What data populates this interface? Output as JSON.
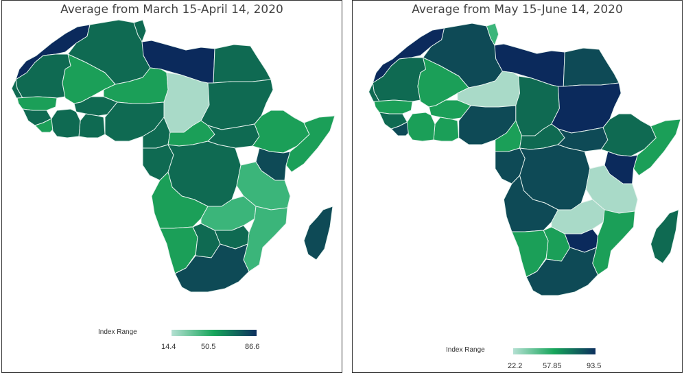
{
  "panels": [
    {
      "title": "Average from March 15-April 14, 2020",
      "legend": {
        "title": "Index Range",
        "min": "14.4",
        "mid": "50.5",
        "max": "86.6",
        "colors": [
          "#b4e0d2",
          "#16a55a",
          "#0d2f5e"
        ]
      }
    },
    {
      "title": "Average from May 15-June 14, 2020",
      "legend": {
        "title": "Index Range",
        "min": "22.2",
        "mid": "57.85",
        "max": "93.5",
        "colors": [
          "#b4e0d2",
          "#16a55a",
          "#0d2f5e"
        ]
      }
    }
  ],
  "palette": {
    "light": "#a9dac8",
    "lightgreen": "#3bb57a",
    "green": "#1b9f58",
    "teal": "#0f6a52",
    "deepteal": "#0e4a56",
    "navy": "#0b2a5c"
  },
  "regions": [
    {
      "id": "morocco",
      "c": [
        "navy",
        "navy"
      ]
    },
    {
      "id": "algeria",
      "c": [
        "teal",
        "deepteal"
      ]
    },
    {
      "id": "tunisia",
      "c": [
        "teal",
        "lightgreen"
      ]
    },
    {
      "id": "libya",
      "c": [
        "navy",
        "navy"
      ]
    },
    {
      "id": "egypt",
      "c": [
        "teal",
        "deepteal"
      ]
    },
    {
      "id": "mauritania",
      "c": [
        "teal",
        "teal"
      ]
    },
    {
      "id": "mali",
      "c": [
        "green",
        "green"
      ]
    },
    {
      "id": "niger",
      "c": [
        "green",
        "light"
      ]
    },
    {
      "id": "chad",
      "c": [
        "light",
        "teal"
      ]
    },
    {
      "id": "sudan",
      "c": [
        "teal",
        "navy"
      ]
    },
    {
      "id": "west-coast",
      "c": [
        "teal",
        "teal"
      ]
    },
    {
      "id": "senegal",
      "c": [
        "green",
        "green"
      ]
    },
    {
      "id": "guinea",
      "c": [
        "teal",
        "teal"
      ]
    },
    {
      "id": "sierra-leone",
      "c": [
        "green",
        "deepteal"
      ]
    },
    {
      "id": "burkina",
      "c": [
        "teal",
        "green"
      ]
    },
    {
      "id": "ghana",
      "c": [
        "teal",
        "green"
      ]
    },
    {
      "id": "cote-divoire",
      "c": [
        "teal",
        "green"
      ]
    },
    {
      "id": "nigeria",
      "c": [
        "teal",
        "deepteal"
      ]
    },
    {
      "id": "cameroon",
      "c": [
        "teal",
        "green"
      ]
    },
    {
      "id": "car",
      "c": [
        "green",
        "teal"
      ]
    },
    {
      "id": "south-sudan",
      "c": [
        "teal",
        "deepteal"
      ]
    },
    {
      "id": "ethiopia",
      "c": [
        "green",
        "teal"
      ]
    },
    {
      "id": "somalia",
      "c": [
        "green",
        "green"
      ]
    },
    {
      "id": "kenya",
      "c": [
        "deepteal",
        "navy"
      ]
    },
    {
      "id": "gabon-congo",
      "c": [
        "teal",
        "deepteal"
      ]
    },
    {
      "id": "drc",
      "c": [
        "teal",
        "deepteal"
      ]
    },
    {
      "id": "tanzania",
      "c": [
        "lightgreen",
        "light"
      ]
    },
    {
      "id": "angola",
      "c": [
        "green",
        "deepteal"
      ]
    },
    {
      "id": "zambia",
      "c": [
        "lightgreen",
        "light"
      ]
    },
    {
      "id": "mozambique",
      "c": [
        "lightgreen",
        "green"
      ]
    },
    {
      "id": "namibia",
      "c": [
        "green",
        "green"
      ]
    },
    {
      "id": "botswana",
      "c": [
        "teal",
        "green"
      ]
    },
    {
      "id": "zimbabwe",
      "c": [
        "teal",
        "navy"
      ]
    },
    {
      "id": "south-africa",
      "c": [
        "deepteal",
        "deepteal"
      ]
    },
    {
      "id": "madagascar",
      "c": [
        "deepteal",
        "teal"
      ]
    }
  ]
}
